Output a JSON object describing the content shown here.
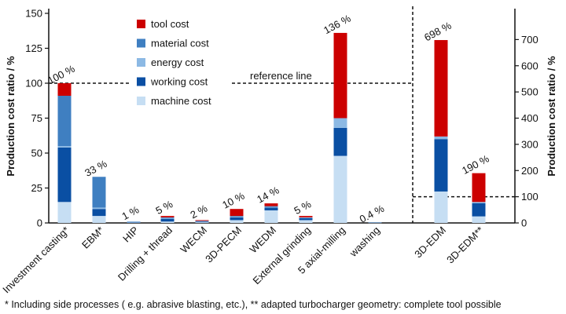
{
  "colors": {
    "tool": "#cc0000",
    "material": "#3f7fc1",
    "energy": "#8cb9e4",
    "working": "#0a4fa3",
    "machine": "#c6def3"
  },
  "chart_data": {
    "type": "bar",
    "stacked": true,
    "ylabel_left": "Production cost ratio / %",
    "ylabel_right": "Production cost ratio / %",
    "ylim_left": [
      0,
      150
    ],
    "yticks_left": [
      0,
      25,
      50,
      75,
      100,
      125,
      150
    ],
    "ylim_right": [
      0,
      800
    ],
    "yticks_right": [
      0,
      100,
      200,
      300,
      400,
      500,
      600,
      700
    ],
    "reference_label": "reference  line",
    "reference_value": 100,
    "legend_position": "top-left inside plot",
    "legend": [
      {
        "key": "tool",
        "label": "tool cost"
      },
      {
        "key": "material",
        "label": "material cost"
      },
      {
        "key": "energy",
        "label": "energy cost"
      },
      {
        "key": "working",
        "label": "working cost"
      },
      {
        "key": "machine",
        "label": "machine cost"
      }
    ],
    "categories": [
      {
        "label": "Investment casting*",
        "total_label": "100 %",
        "axis": "left",
        "values": {
          "machine": 15,
          "working": 39,
          "energy": 1,
          "material": 36,
          "tool": 9
        }
      },
      {
        "label": "EBM*",
        "total_label": "33 %",
        "axis": "left",
        "values": {
          "machine": 5,
          "working": 5,
          "energy": 1,
          "material": 22,
          "tool": 0
        }
      },
      {
        "label": "HIP",
        "total_label": "1 %",
        "axis": "left",
        "values": {
          "machine": 0.3,
          "working": 0.5,
          "energy": 0.2,
          "material": 0,
          "tool": 0
        }
      },
      {
        "label": "Drilling + thread",
        "total_label": "5 %",
        "axis": "left",
        "values": {
          "machine": 1,
          "working": 2,
          "energy": 0.5,
          "material": 0.5,
          "tool": 1
        }
      },
      {
        "label": "WECM",
        "total_label": "2 %",
        "axis": "left",
        "values": {
          "machine": 0.5,
          "working": 0.5,
          "energy": 0.2,
          "material": 0.3,
          "tool": 0.5
        }
      },
      {
        "label": "3D-PECM",
        "total_label": "10 %",
        "axis": "left",
        "values": {
          "machine": 2,
          "working": 2,
          "energy": 0.5,
          "material": 0.5,
          "tool": 5
        }
      },
      {
        "label": "WEDM",
        "total_label": "14 %",
        "axis": "left",
        "values": {
          "machine": 9,
          "working": 2,
          "energy": 0.5,
          "material": 0.5,
          "tool": 2
        }
      },
      {
        "label": "External grinding",
        "total_label": "5 %",
        "axis": "left",
        "values": {
          "machine": 2,
          "working": 1.5,
          "energy": 0.5,
          "material": 0,
          "tool": 1
        }
      },
      {
        "label": "5 axial-milling",
        "total_label": "136 %",
        "axis": "left",
        "values": {
          "machine": 48,
          "working": 20,
          "energy": 7,
          "material": 0,
          "tool": 61
        }
      },
      {
        "label": "washing",
        "total_label": "0.4 %",
        "axis": "left",
        "values": {
          "machine": 0.2,
          "working": 0.1,
          "energy": 0.1,
          "material": 0,
          "tool": 0
        }
      },
      {
        "label": "3D-EDM",
        "total_label": "698 %",
        "axis": "right",
        "values": {
          "machine": 120,
          "working": 200,
          "energy": 10,
          "material": 0,
          "tool": 368
        }
      },
      {
        "label": "3D-EDM**",
        "total_label": "190 %",
        "axis": "right",
        "values": {
          "machine": 25,
          "working": 50,
          "energy": 5,
          "material": 0,
          "tool": 110
        }
      }
    ]
  },
  "footnote": "* Including side processes ( e.g. abrasive blasting, etc.), ** adapted turbocharger geometry: complete tool possible"
}
